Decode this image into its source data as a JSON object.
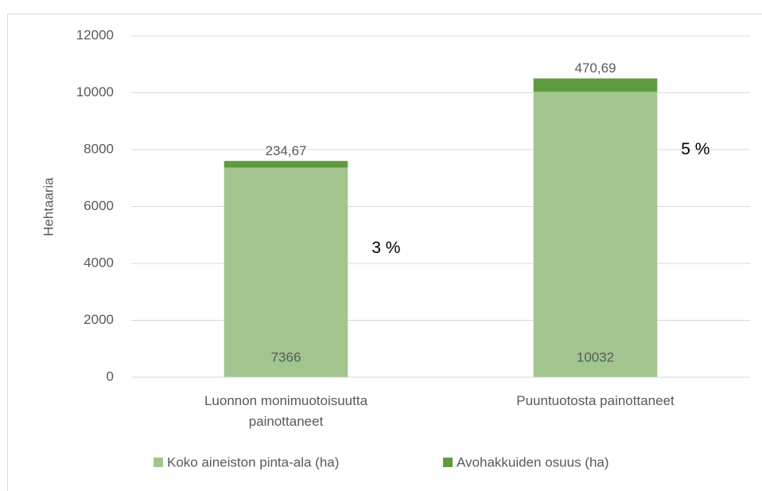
{
  "chart_data": {
    "type": "stacked_bar",
    "categories": [
      "Luonnon monimuotoisuutta painottaneet",
      "Puuntuotosta painottaneet"
    ],
    "series": [
      {
        "name": "Koko aineiston pinta-ala (ha)",
        "color": "#a2c58f",
        "values": [
          7366,
          10032
        ]
      },
      {
        "name": "Avohakkuiden osuus (ha)",
        "color": "#5f9a3f",
        "values": [
          234.67,
          470.69
        ],
        "value_labels": [
          "234,67",
          "470,69"
        ]
      }
    ],
    "annotations": [
      "3 %",
      "5 %"
    ],
    "y_label": "Hehtaaria",
    "ylim": [
      0,
      12000
    ],
    "yticks": [
      0,
      2000,
      4000,
      6000,
      8000,
      10000,
      12000
    ],
    "grid": true,
    "legend": "bottom"
  }
}
